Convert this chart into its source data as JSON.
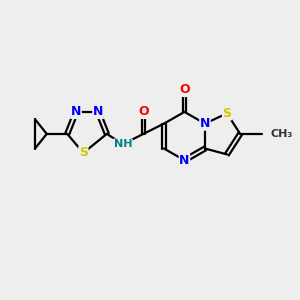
{
  "background_color": "#eeeeee",
  "atom_colors": {
    "N": "#0000ff",
    "O": "#ff0000",
    "S": "#cccc00",
    "H": "#008080",
    "C": "#000000"
  },
  "bond_lw": 1.6,
  "font_size": 9
}
